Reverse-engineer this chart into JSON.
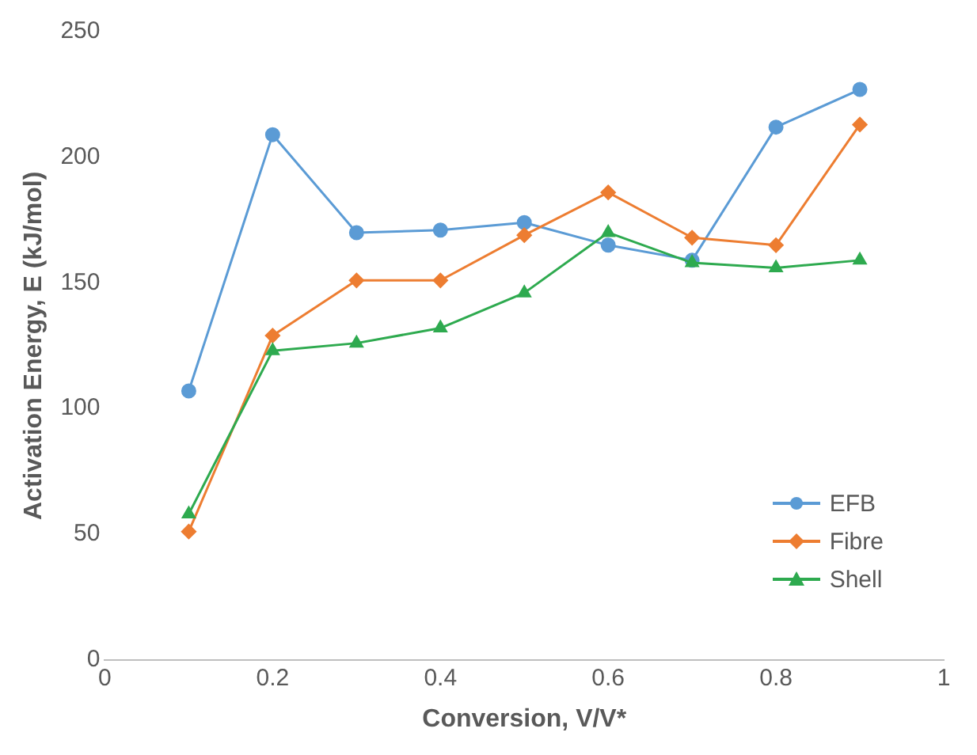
{
  "chart_data": {
    "type": "line",
    "xlabel": "Conversion, V/V*",
    "ylabel": "Activation Energy, E (kJ/mol)",
    "x": [
      0.1,
      0.2,
      0.3,
      0.4,
      0.5,
      0.6,
      0.7,
      0.8,
      0.9
    ],
    "xlim": [
      0,
      1
    ],
    "xticks": [
      0,
      0.2,
      0.4,
      0.6,
      0.8,
      1
    ],
    "ylim": [
      0,
      250
    ],
    "yticks": [
      0,
      50,
      100,
      150,
      200,
      250
    ],
    "grid": false,
    "legend": "bottom right",
    "series": [
      {
        "name": "EFB",
        "color": "#5b9bd5",
        "marker": "circle",
        "values": [
          107,
          209,
          170,
          171,
          174,
          165,
          159,
          212,
          227
        ]
      },
      {
        "name": "Fibre",
        "color": "#ed7d31",
        "marker": "diamond",
        "values": [
          51,
          129,
          151,
          151,
          169,
          186,
          168,
          165,
          213
        ]
      },
      {
        "name": "Shell",
        "color": "#2eaa4f",
        "marker": "triangle",
        "values": [
          58,
          123,
          126,
          132,
          146,
          170,
          158,
          156,
          159
        ]
      }
    ]
  }
}
